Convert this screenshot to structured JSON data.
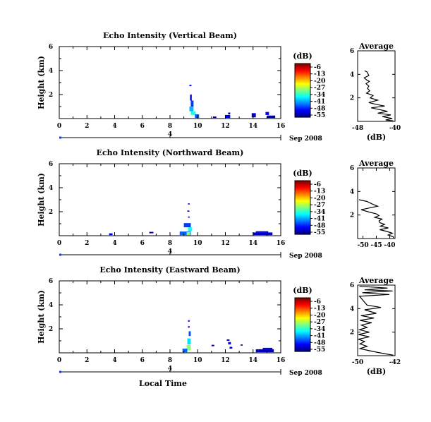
{
  "chart_data": [
    {
      "type": "heatmap",
      "title": "Echo Intensity (Vertical Beam)",
      "ylabel": "Height (km)",
      "xlabel": "",
      "xlim": [
        0,
        16
      ],
      "ylim": [
        0,
        6
      ],
      "x_ticks": [
        "0",
        "2",
        "4",
        "6",
        "8",
        "10",
        "12",
        "14",
        "16"
      ],
      "y_ticks": [
        "6",
        "4",
        "2"
      ],
      "date_axis": {
        "label": "Sep 2008",
        "marker": "4"
      },
      "colorbar": {
        "unit": "(dB)",
        "ticks": [
          "-6",
          "-13",
          "-20",
          "-27",
          "-34",
          "-41",
          "-48",
          "-55"
        ]
      },
      "cells": [
        {
          "x": 9.4,
          "y": 2.7,
          "w": 0.15,
          "h": 0.12,
          "v": -48
        },
        {
          "x": 9.45,
          "y": 1.5,
          "w": 0.12,
          "h": 0.5,
          "v": -52
        },
        {
          "x": 9.5,
          "y": 1.0,
          "w": 0.2,
          "h": 0.5,
          "v": -46
        },
        {
          "x": 9.4,
          "y": 0.6,
          "w": 0.3,
          "h": 0.4,
          "v": -40
        },
        {
          "x": 9.5,
          "y": 0.3,
          "w": 0.35,
          "h": 0.3,
          "v": -35
        },
        {
          "x": 9.8,
          "y": 0.05,
          "w": 0.3,
          "h": 0.3,
          "v": -45
        },
        {
          "x": 11.1,
          "y": 0.05,
          "w": 0.25,
          "h": 0.12,
          "v": -52
        },
        {
          "x": 12.0,
          "y": 0.05,
          "w": 0.35,
          "h": 0.25,
          "v": -50
        },
        {
          "x": 12.2,
          "y": 0.35,
          "w": 0.15,
          "h": 0.15,
          "v": -53
        },
        {
          "x": 13.9,
          "y": 0.1,
          "w": 0.3,
          "h": 0.35,
          "v": -51
        },
        {
          "x": 14.9,
          "y": 0.3,
          "w": 0.25,
          "h": 0.25,
          "v": -49
        },
        {
          "x": 15.0,
          "y": 0.05,
          "w": 0.6,
          "h": 0.2,
          "v": -54
        }
      ],
      "average_profile": {
        "title": "Average",
        "xlabel": "(dB)",
        "xlim": [
          -48,
          -40
        ],
        "x_ticks": [
          "-48",
          "-40"
        ],
        "ylim": [
          0,
          6
        ],
        "y_ticks": [
          "6",
          "4",
          "2"
        ],
        "profile": [
          [
            -46.5,
            4.3
          ],
          [
            -46.0,
            4.2
          ],
          [
            -45.6,
            3.9
          ],
          [
            -46.6,
            3.7
          ],
          [
            -46.0,
            3.5
          ],
          [
            -45.5,
            3.4
          ],
          [
            -46.2,
            3.2
          ],
          [
            -45.6,
            3.0
          ],
          [
            -45.9,
            2.8
          ],
          [
            -45.4,
            2.6
          ],
          [
            -46.1,
            2.4
          ],
          [
            -44.7,
            2.2
          ],
          [
            -45.3,
            2.0
          ],
          [
            -43.7,
            1.8
          ],
          [
            -45.6,
            1.6
          ],
          [
            -44.1,
            1.45
          ],
          [
            -42.2,
            1.3
          ],
          [
            -45.1,
            1.15
          ],
          [
            -43.3,
            1.0
          ],
          [
            -41.6,
            0.85
          ],
          [
            -43.7,
            0.7
          ],
          [
            -40.9,
            0.55
          ],
          [
            -42.7,
            0.4
          ],
          [
            -40.6,
            0.25
          ],
          [
            -42.0,
            0.12
          ],
          [
            -40.4,
            0.05
          ]
        ]
      }
    },
    {
      "type": "heatmap",
      "title": "Echo Intensity (Northward Beam)",
      "ylabel": "Height (km)",
      "xlabel": "",
      "xlim": [
        0,
        16
      ],
      "ylim": [
        0,
        6
      ],
      "x_ticks": [
        "0",
        "2",
        "4",
        "6",
        "8",
        "10",
        "12",
        "14",
        "16"
      ],
      "y_ticks": [
        "6",
        "4",
        "2"
      ],
      "date_axis": {
        "label": "Sep 2008",
        "marker": "4"
      },
      "colorbar": {
        "unit": "(dB)",
        "ticks": [
          "-6",
          "-13",
          "-20",
          "-27",
          "-34",
          "-41",
          "-48",
          "-55"
        ]
      },
      "cells": [
        {
          "x": 3.6,
          "y": 0.05,
          "w": 0.25,
          "h": 0.15,
          "v": -50
        },
        {
          "x": 6.5,
          "y": 0.2,
          "w": 0.3,
          "h": 0.12,
          "v": -53
        },
        {
          "x": 9.3,
          "y": 2.6,
          "w": 0.12,
          "h": 0.1,
          "v": -50
        },
        {
          "x": 9.25,
          "y": 2.0,
          "w": 0.15,
          "h": 0.1,
          "v": -52
        },
        {
          "x": 9.3,
          "y": 1.5,
          "w": 0.12,
          "h": 0.1,
          "v": -50
        },
        {
          "x": 9.0,
          "y": 0.7,
          "w": 0.5,
          "h": 0.35,
          "v": -46
        },
        {
          "x": 9.3,
          "y": 0.4,
          "w": 0.3,
          "h": 0.3,
          "v": -36
        },
        {
          "x": 8.7,
          "y": 0.05,
          "w": 0.8,
          "h": 0.3,
          "v": -44
        },
        {
          "x": 9.2,
          "y": 0.05,
          "w": 0.25,
          "h": 0.25,
          "v": -30
        },
        {
          "x": 14.0,
          "y": 0.05,
          "w": 1.4,
          "h": 0.22,
          "v": -51
        },
        {
          "x": 14.2,
          "y": 0.27,
          "w": 0.9,
          "h": 0.1,
          "v": -53
        }
      ],
      "average_profile": {
        "title": "Average",
        "xlabel": "",
        "xlim": [
          -52,
          -38
        ],
        "x_ticks": [
          "-50",
          "-45",
          "-40"
        ],
        "ylim": [
          0,
          6
        ],
        "y_ticks": [
          "6",
          "4",
          "2"
        ],
        "profile": [
          [
            -51.5,
            3.3
          ],
          [
            -48.5,
            3.15
          ],
          [
            -46.2,
            2.9
          ],
          [
            -44.5,
            2.75
          ],
          [
            -47.6,
            2.6
          ],
          [
            -50.7,
            2.45
          ],
          [
            -47.7,
            2.25
          ],
          [
            -45.0,
            2.1
          ],
          [
            -44.0,
            1.95
          ],
          [
            -45.6,
            1.8
          ],
          [
            -42.9,
            1.65
          ],
          [
            -44.0,
            1.5
          ],
          [
            -43.7,
            1.35
          ],
          [
            -41.9,
            1.2
          ],
          [
            -43.5,
            1.05
          ],
          [
            -40.5,
            0.9
          ],
          [
            -43.7,
            0.75
          ],
          [
            -41.0,
            0.6
          ],
          [
            -39.0,
            0.45
          ],
          [
            -40.6,
            0.3
          ],
          [
            -38.7,
            0.15
          ],
          [
            -38.5,
            0.05
          ]
        ]
      }
    },
    {
      "type": "heatmap",
      "title": "Echo Intensity (Eastward Beam)",
      "ylabel": "Height (km)",
      "xlabel": "Local Time",
      "xlim": [
        0,
        16
      ],
      "ylim": [
        0,
        6
      ],
      "x_ticks": [
        "0",
        "2",
        "4",
        "6",
        "8",
        "10",
        "12",
        "14",
        "16"
      ],
      "y_ticks": [
        "6",
        "4",
        "2"
      ],
      "date_axis": {
        "label": "Sep 2008",
        "marker": "4"
      },
      "colorbar": {
        "unit": "(dB)",
        "ticks": [
          "-6",
          "-13",
          "-20",
          "-27",
          "-34",
          "-41",
          "-48",
          "-55"
        ]
      },
      "cells": [
        {
          "x": 9.3,
          "y": 2.6,
          "w": 0.12,
          "h": 0.12,
          "v": -50
        },
        {
          "x": 9.3,
          "y": 2.1,
          "w": 0.12,
          "h": 0.12,
          "v": -52
        },
        {
          "x": 9.35,
          "y": 1.4,
          "w": 0.15,
          "h": 0.4,
          "v": -45
        },
        {
          "x": 9.25,
          "y": 0.7,
          "w": 0.25,
          "h": 0.5,
          "v": -38
        },
        {
          "x": 9.2,
          "y": 0.2,
          "w": 0.3,
          "h": 0.45,
          "v": -30
        },
        {
          "x": 8.9,
          "y": 0.05,
          "w": 0.35,
          "h": 0.3,
          "v": -44
        },
        {
          "x": 11.0,
          "y": 0.55,
          "w": 0.2,
          "h": 0.12,
          "v": -52
        },
        {
          "x": 12.1,
          "y": 1.0,
          "w": 0.2,
          "h": 0.12,
          "v": -51
        },
        {
          "x": 12.2,
          "y": 0.7,
          "w": 0.2,
          "h": 0.2,
          "v": -49
        },
        {
          "x": 12.3,
          "y": 0.35,
          "w": 0.2,
          "h": 0.15,
          "v": -50
        },
        {
          "x": 13.1,
          "y": 0.6,
          "w": 0.15,
          "h": 0.1,
          "v": -53
        },
        {
          "x": 14.2,
          "y": 0.05,
          "w": 1.3,
          "h": 0.25,
          "v": -52
        },
        {
          "x": 14.7,
          "y": 0.3,
          "w": 0.7,
          "h": 0.12,
          "v": -50
        }
      ],
      "average_profile": {
        "title": "Average",
        "xlabel": "(dB)",
        "xlim": [
          -50,
          -42
        ],
        "x_ticks": [
          "-50",
          "-42"
        ],
        "ylim": [
          0,
          6
        ],
        "y_ticks": [
          "6",
          "4",
          "2"
        ],
        "profile": [
          [
            -49.6,
            5.9
          ],
          [
            -43.6,
            5.75
          ],
          [
            -48.5,
            5.6
          ],
          [
            -42.5,
            5.5
          ],
          [
            -49.0,
            5.35
          ],
          [
            -43.2,
            5.2
          ],
          [
            -49.6,
            5.05
          ],
          [
            -48.0,
            4.3
          ],
          [
            -45.0,
            4.1
          ],
          [
            -48.5,
            3.9
          ],
          [
            -46.0,
            3.6
          ],
          [
            -49.3,
            3.4
          ],
          [
            -46.5,
            3.2
          ],
          [
            -49.5,
            3.0
          ],
          [
            -47.0,
            2.8
          ],
          [
            -49.2,
            2.6
          ],
          [
            -48.0,
            2.4
          ],
          [
            -49.6,
            2.2
          ],
          [
            -47.5,
            2.0
          ],
          [
            -49.8,
            1.8
          ],
          [
            -47.5,
            1.6
          ],
          [
            -49.8,
            1.4
          ],
          [
            -48.5,
            1.2
          ],
          [
            -49.5,
            1.0
          ],
          [
            -48.0,
            0.8
          ],
          [
            -49.5,
            0.6
          ],
          [
            -47.8,
            0.45
          ],
          [
            -46.0,
            0.3
          ],
          [
            -44.0,
            0.15
          ],
          [
            -42.4,
            0.05
          ]
        ]
      }
    }
  ]
}
